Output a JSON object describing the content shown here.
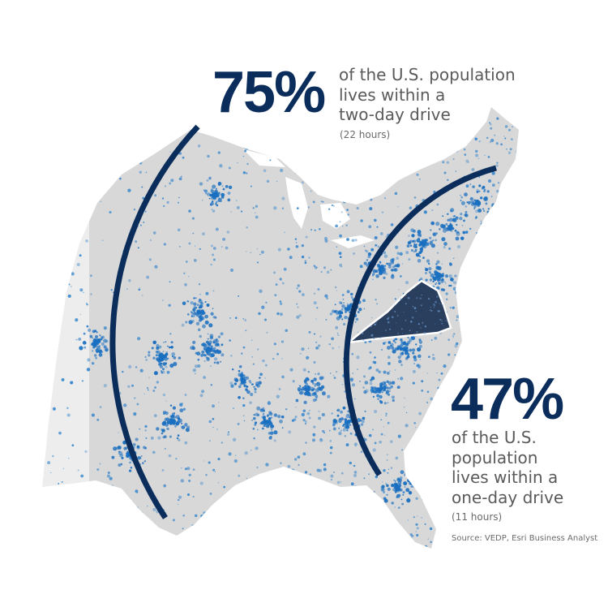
{
  "stat_two_day": {
    "value": "75%",
    "desc_lines": [
      "of the U.S. population",
      "lives within a",
      "two-day drive"
    ],
    "note": "(22 hours)"
  },
  "stat_one_day": {
    "value": "47%",
    "desc_lines": [
      "of the U.S.",
      "population",
      "lives within a",
      "one-day drive"
    ],
    "note": "(11 hours)"
  },
  "source": "Source: VEDP, Esri Business Analyst",
  "colors": {
    "navy": "#0b2d5b",
    "population_blue": "#2a7fcb",
    "land_gray": "#d8d8d8",
    "virginia_fill": "#2a3f5e",
    "text_gray": "#5a5a5a"
  }
}
